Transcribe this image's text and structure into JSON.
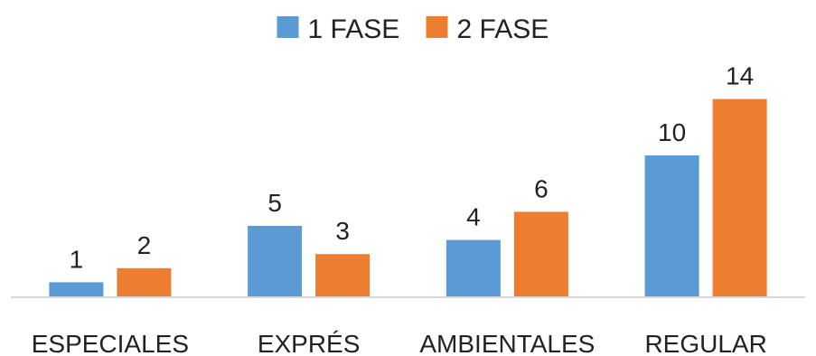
{
  "chart_data": {
    "type": "bar",
    "categories": [
      "ESPECIALES",
      "EXPRÉS",
      "AMBIENTALES",
      "REGULAR"
    ],
    "series": [
      {
        "name": "1 FASE",
        "values": [
          1,
          5,
          4,
          10
        ],
        "color": "#5B9BD5"
      },
      {
        "name": "2 FASE",
        "values": [
          2,
          3,
          6,
          14
        ],
        "color": "#ED7D31"
      }
    ],
    "data_labels": true,
    "legend_position": "top-center",
    "grid": false,
    "ylim": [
      0,
      14
    ],
    "xlabel": "",
    "ylabel": ""
  }
}
